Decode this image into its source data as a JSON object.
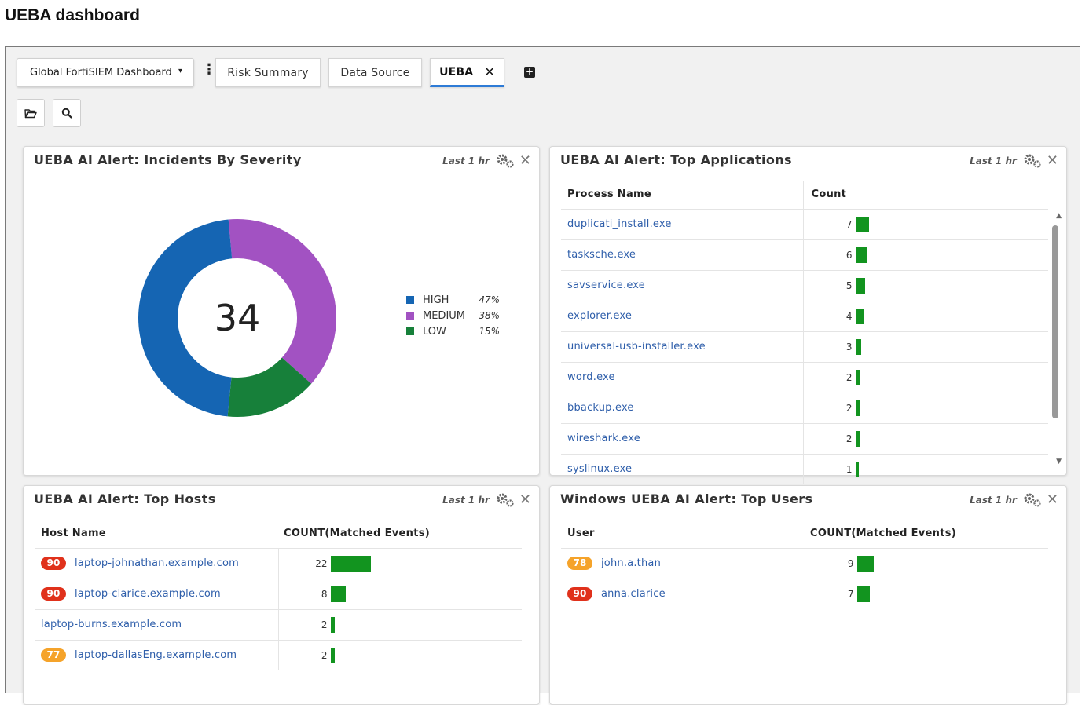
{
  "page": {
    "title": "UEBA dashboard"
  },
  "toolbar": {
    "dashboard_select": "Global FortiSIEM Dashboard",
    "tabs": [
      {
        "label": "Risk Summary"
      },
      {
        "label": "Data Source"
      },
      {
        "label": "UEBA"
      }
    ],
    "active_tab": "UEBA",
    "icons": [
      "folder-open-icon",
      "search-icon",
      "add-tab-icon",
      "more-icon"
    ]
  },
  "panels": {
    "severity": {
      "title": "UEBA AI Alert: Incidents By Severity",
      "range": "Last 1 hr",
      "total": "34",
      "legend": [
        {
          "label": "HIGH",
          "pct": "47%",
          "color": "#1565b3",
          "value": 47
        },
        {
          "label": "MEDIUM",
          "pct": "38%",
          "color": "#a252c2",
          "value": 38
        },
        {
          "label": "LOW",
          "pct": "15%",
          "color": "#17803a",
          "value": 15
        }
      ]
    },
    "applications": {
      "title": "UEBA AI Alert: Top Applications",
      "range": "Last 1 hr",
      "columns": [
        "Process Name",
        "Count"
      ],
      "max": 7,
      "rows": [
        {
          "name": "duplicati_install.exe",
          "count": "7",
          "value": 7
        },
        {
          "name": "tasksche.exe",
          "count": "6",
          "value": 6
        },
        {
          "name": "savservice.exe",
          "count": "5",
          "value": 5
        },
        {
          "name": "explorer.exe",
          "count": "4",
          "value": 4
        },
        {
          "name": "universal-usb-installer.exe",
          "count": "3",
          "value": 3
        },
        {
          "name": "word.exe",
          "count": "2",
          "value": 2
        },
        {
          "name": "bbackup.exe",
          "count": "2",
          "value": 2
        },
        {
          "name": "wireshark.exe",
          "count": "2",
          "value": 2
        },
        {
          "name": "syslinux.exe",
          "count": "1",
          "value": 1
        }
      ]
    },
    "hosts": {
      "title": "UEBA AI Alert: Top Hosts",
      "range": "Last 1 hr",
      "columns": [
        "Host Name",
        "COUNT(Matched Events)"
      ],
      "max": 22,
      "rows": [
        {
          "badge": "90",
          "badge_color": "red",
          "name": "laptop-johnathan.example.com",
          "count": "22",
          "value": 22
        },
        {
          "badge": "90",
          "badge_color": "red",
          "name": "laptop-clarice.example.com",
          "count": "8",
          "value": 8
        },
        {
          "badge": "",
          "badge_color": "",
          "name": "laptop-burns.example.com",
          "count": "2",
          "value": 2
        },
        {
          "badge": "77",
          "badge_color": "orange",
          "name": "laptop-dallasEng.example.com",
          "count": "2",
          "value": 2
        }
      ]
    },
    "users": {
      "title": "Windows UEBA AI Alert: Top Users",
      "range": "Last 1 hr",
      "columns": [
        "User",
        "COUNT(Matched Events)"
      ],
      "max": 22,
      "rows": [
        {
          "badge": "78",
          "badge_color": "orange",
          "name": "john.a.than",
          "count": "9",
          "value": 9
        },
        {
          "badge": "90",
          "badge_color": "red",
          "name": "anna.clarice",
          "count": "7",
          "value": 7
        }
      ]
    }
  }
}
